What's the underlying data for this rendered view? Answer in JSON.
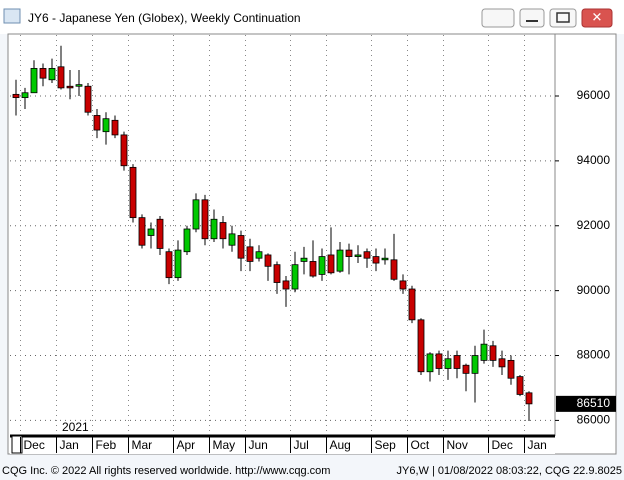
{
  "window_title": "JY6 - Japanese Yen (Globex), Weekly Continuation",
  "footer": {
    "left": "CQG Inc. © 2022 All rights reserved worldwide. http://www.cqg.com",
    "right": "JY6,W | 01/08/2022 08:03:22, CQG 22.9.8025"
  },
  "chart_data": {
    "type": "candlestick",
    "year_label": "2021",
    "categories": [
      null,
      "Dec",
      null,
      null,
      null,
      "Jan",
      null,
      null,
      null,
      "Feb",
      null,
      null,
      null,
      "Mar",
      null,
      null,
      null,
      null,
      "Apr",
      null,
      null,
      null,
      "May",
      null,
      null,
      null,
      "Jun",
      null,
      null,
      null,
      null,
      "Jul",
      null,
      null,
      null,
      "Aug",
      null,
      null,
      null,
      null,
      "Sep",
      null,
      null,
      null,
      "Oct",
      null,
      null,
      null,
      "Nov",
      null,
      null,
      null,
      null,
      "Dec",
      null,
      null,
      null,
      "Jan"
    ],
    "open": [
      96050,
      95950,
      96100,
      96850,
      96500,
      96900,
      96300,
      96300,
      96300,
      95400,
      94900,
      95250,
      94800,
      93800,
      92250,
      91700,
      92200,
      91200,
      90400,
      91200,
      91900,
      92800,
      91600,
      92100,
      91400,
      91700,
      91350,
      91000,
      91100,
      90800,
      90300,
      90050,
      90900,
      90900,
      90500,
      91100,
      90600,
      91250,
      91050,
      91200,
      91050,
      90950,
      90950,
      90300,
      90050,
      89100,
      87500,
      88050,
      87600,
      88000,
      87700,
      87450,
      87850,
      88300,
      87900,
      87850,
      87350,
      86850
    ],
    "high": [
      96500,
      96250,
      97100,
      97000,
      97150,
      97550,
      96800,
      96800,
      96400,
      95600,
      95500,
      95400,
      94900,
      93900,
      92350,
      92100,
      92300,
      91300,
      91550,
      92000,
      93000,
      92950,
      92500,
      92300,
      92000,
      91850,
      91600,
      91400,
      91150,
      90900,
      90450,
      91200,
      91350,
      91550,
      91300,
      91950,
      91500,
      91450,
      91400,
      91300,
      91300,
      91300,
      91750,
      90500,
      90150,
      89150,
      88100,
      88150,
      88150,
      88150,
      87750,
      88300,
      88800,
      88450,
      88150,
      88000,
      87400,
      86900
    ],
    "low": [
      95400,
      95600,
      96100,
      96300,
      96400,
      96200,
      95900,
      96000,
      95400,
      94700,
      94500,
      94700,
      93700,
      92100,
      91300,
      91300,
      91100,
      90200,
      90300,
      91100,
      91800,
      91400,
      91500,
      91300,
      91200,
      90600,
      90600,
      90900,
      90300,
      89900,
      89500,
      89950,
      90500,
      90400,
      90300,
      90500,
      90550,
      90500,
      90850,
      90700,
      90600,
      90800,
      90300,
      89900,
      89000,
      87400,
      87200,
      87400,
      87250,
      87300,
      86900,
      86550,
      87750,
      87650,
      87400,
      87100,
      86750,
      85980
    ],
    "close": [
      95950,
      96100,
      96850,
      96550,
      96850,
      96250,
      96250,
      96350,
      95500,
      94950,
      95300,
      94800,
      93850,
      92250,
      91400,
      91900,
      91300,
      90400,
      91250,
      91900,
      92800,
      91600,
      92200,
      91600,
      91750,
      91000,
      90900,
      91200,
      90750,
      90250,
      90050,
      90800,
      91000,
      90450,
      91050,
      90550,
      91250,
      91050,
      91100,
      91000,
      90850,
      91000,
      90350,
      90050,
      89100,
      87500,
      88050,
      87600,
      87900,
      87600,
      87450,
      88000,
      88350,
      87850,
      87650,
      87300,
      86800,
      86510
    ],
    "last_price": 86510,
    "up_color": "#00c800",
    "down_color": "#c80000",
    "ylim": [
      85550,
      97880
    ],
    "yticks": [
      86000,
      88000,
      90000,
      92000,
      94000,
      96000
    ],
    "grid": true
  }
}
